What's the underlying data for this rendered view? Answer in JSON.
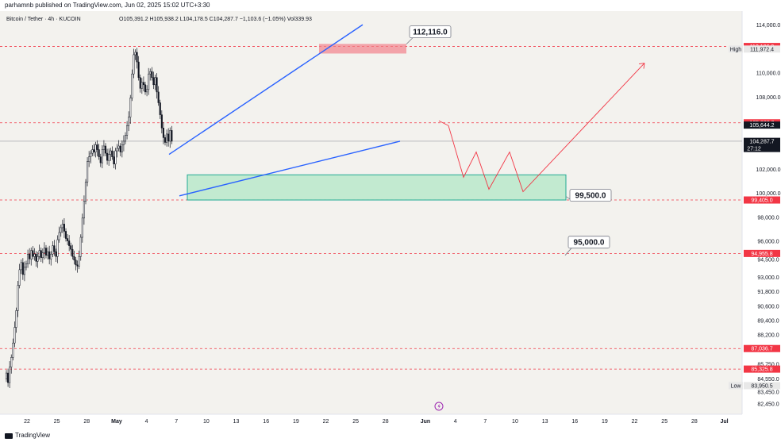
{
  "header": {
    "publish_line": "parhamnb published on TradingView.com, Jun 02, 2025 15:02 UTC+3:30"
  },
  "chart_data": {
    "type": "candlestick",
    "title": "Bitcoin / Tether · 4h · KUCOIN",
    "ohlc_readout": "O105,391.2 H105,938.2 L104,178.5 C104,287.7 −1,103.6 (−1.05%) Vol339.93",
    "ylim": [
      81700,
      115000
    ],
    "y_ticks": [
      "114,000.0",
      "110,000.0",
      "108,000.0",
      "102,000.0",
      "100,000.0",
      "98,000.0",
      "96,000.0",
      "94,500.0",
      "93,000.0",
      "91,800.0",
      "90,600.0",
      "89,400.0",
      "88,200.0",
      "85,750.0",
      "84,550.0",
      "83,450.0",
      "82,450.0"
    ],
    "y_tick_values": [
      114000,
      110000,
      108000,
      102000,
      100000,
      98000,
      96000,
      94500,
      93000,
      91800,
      90600,
      89400,
      88200,
      85750,
      84550,
      83450,
      82450
    ],
    "x_ticks": [
      "22",
      "25",
      "28",
      "May",
      "4",
      "7",
      "10",
      "13",
      "16",
      "19",
      "22",
      "25",
      "28",
      "Jun",
      "4",
      "7",
      "10",
      "13",
      "16",
      "19",
      "22",
      "25",
      "28",
      "Jul"
    ],
    "price_labels": [
      {
        "value": 112186.9,
        "text": "112,186.9",
        "color": "#f23645"
      },
      {
        "value": 111972.4,
        "text": "111,972.4",
        "color": "#e8e8e8",
        "tag": "High"
      },
      {
        "value": 105832.8,
        "text": "105,832.8",
        "color": "#f23645"
      },
      {
        "value": 105644.2,
        "text": "105,644.2",
        "color": "#131722"
      },
      {
        "value": 104287.7,
        "text": "104,287.7",
        "color": "#131722",
        "countdown": "27:12"
      },
      {
        "value": 99405.0,
        "text": "99,405.0",
        "color": "#f23645"
      },
      {
        "value": 94955.8,
        "text": "94,955.8",
        "color": "#f23645"
      },
      {
        "value": 87036.7,
        "text": "87,036.7",
        "color": "#f23645"
      },
      {
        "value": 85325.8,
        "text": "85,325.8",
        "color": "#f23645"
      },
      {
        "value": 83950.5,
        "text": "83,950.5",
        "color": "#e8e8e8",
        "tag": "Low"
      }
    ],
    "horizontal_levels": [
      112186.9,
      105832.8,
      99405.0,
      94955.8,
      87036.7,
      85325.8
    ],
    "callouts": [
      {
        "text": "112,116.0",
        "value": 112116.0
      },
      {
        "text": "99,500.0",
        "value": 99500.0
      },
      {
        "text": "95,000.0",
        "value": 95000.0
      }
    ],
    "support_zone": [
      99405.0,
      101500.0
    ],
    "supply_zone": [
      111600.0,
      112400.0
    ],
    "closes": [
      85000,
      84200,
      85500,
      86300,
      87500,
      88800,
      90200,
      92300,
      93600,
      94200,
      93200,
      93800,
      94100,
      94900,
      94500,
      95200,
      94700,
      94900,
      94300,
      94700,
      95200,
      94600,
      95000,
      95400,
      94800,
      95100,
      94500,
      94900,
      95600,
      95100,
      94700,
      96100,
      96700,
      97100,
      97400,
      96800,
      96200,
      96000,
      95600,
      95300,
      94700,
      94400,
      94000,
      93900,
      94700,
      96300,
      97900,
      99300,
      100900,
      102600,
      103000,
      103300,
      103600,
      103400,
      104000,
      103600,
      103000,
      102500,
      103600,
      103900,
      103300,
      102700,
      103200,
      103500,
      103000,
      102400,
      103500,
      103700,
      103900,
      103400,
      104000,
      104300,
      104800,
      105600,
      106300,
      107900,
      109900,
      111500,
      111700,
      110900,
      109600,
      108700,
      109200,
      109000,
      108400,
      108600,
      109900,
      110100,
      109600,
      109000,
      109600,
      108400,
      107500,
      106500,
      105400,
      104600,
      104200,
      104900,
      104300,
      105200,
      104300
    ]
  }
}
